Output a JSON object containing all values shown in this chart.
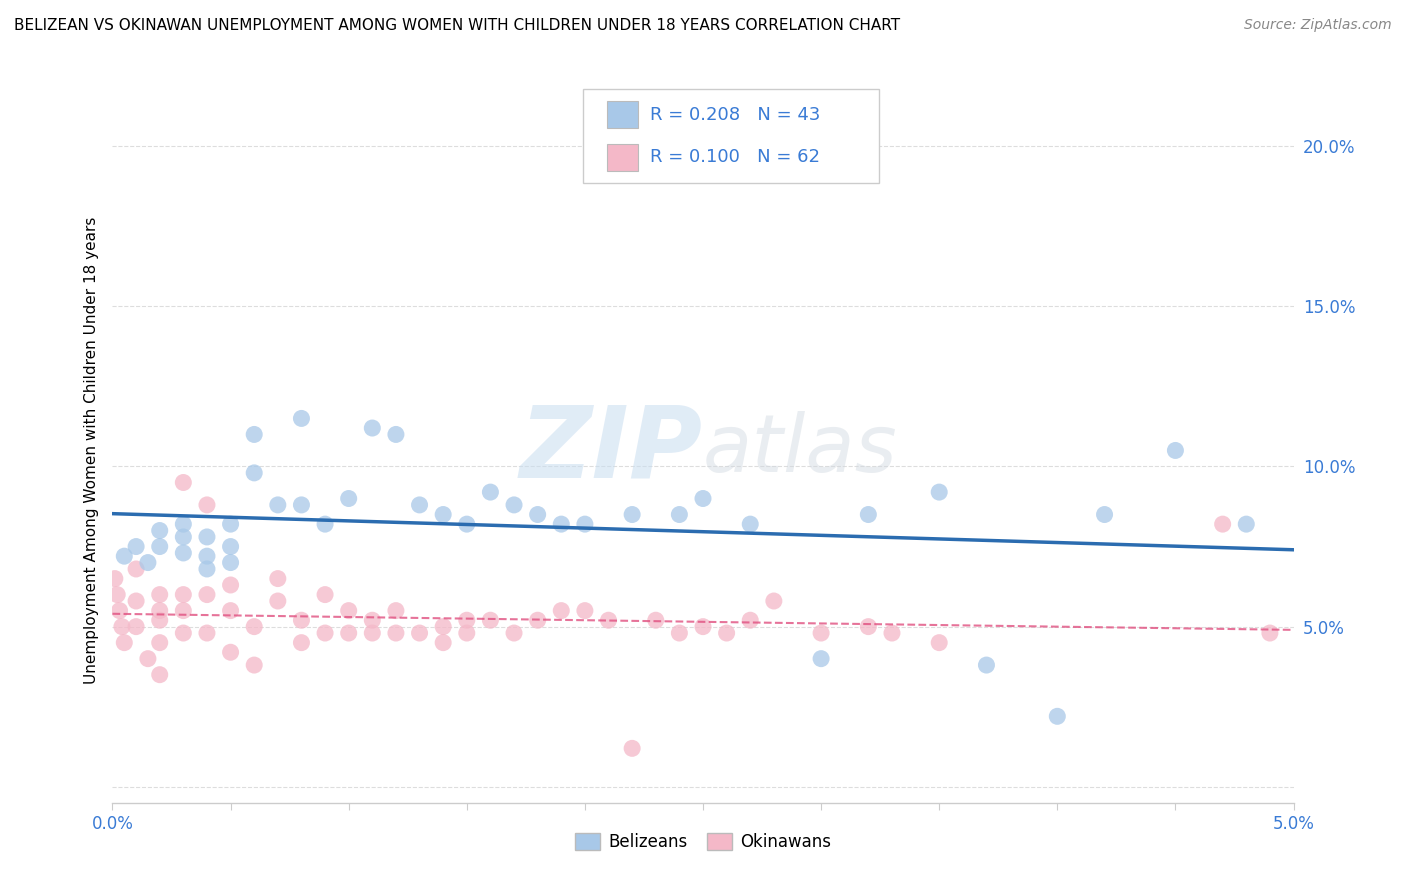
{
  "title": "BELIZEAN VS OKINAWAN UNEMPLOYMENT AMONG WOMEN WITH CHILDREN UNDER 18 YEARS CORRELATION CHART",
  "source": "Source: ZipAtlas.com",
  "ylabel": "Unemployment Among Women with Children Under 18 years",
  "xlim": [
    0.0,
    0.05
  ],
  "ylim": [
    -0.005,
    0.215
  ],
  "xticks": [
    0.0,
    0.005,
    0.01,
    0.015,
    0.02,
    0.025,
    0.03,
    0.035,
    0.04,
    0.045,
    0.05
  ],
  "yticks": [
    0.0,
    0.05,
    0.1,
    0.15,
    0.2
  ],
  "belizean_color": "#a8c8e8",
  "okinawan_color": "#f4b8c8",
  "belizean_line_color": "#2b6cb0",
  "okinawan_line_color": "#e05080",
  "R_belizean": 0.208,
  "N_belizean": 43,
  "R_okinawan": 0.1,
  "N_okinawan": 62,
  "watermark_zip": "ZIP",
  "watermark_atlas": "atlas",
  "belizean_x": [
    0.0005,
    0.001,
    0.0015,
    0.002,
    0.002,
    0.003,
    0.003,
    0.003,
    0.004,
    0.004,
    0.004,
    0.005,
    0.005,
    0.005,
    0.006,
    0.006,
    0.007,
    0.008,
    0.008,
    0.009,
    0.01,
    0.011,
    0.012,
    0.013,
    0.014,
    0.015,
    0.016,
    0.017,
    0.018,
    0.019,
    0.02,
    0.022,
    0.024,
    0.025,
    0.027,
    0.03,
    0.032,
    0.035,
    0.037,
    0.04,
    0.042,
    0.045,
    0.048
  ],
  "belizean_y": [
    0.072,
    0.075,
    0.07,
    0.08,
    0.075,
    0.073,
    0.078,
    0.082,
    0.072,
    0.078,
    0.068,
    0.075,
    0.082,
    0.07,
    0.11,
    0.098,
    0.088,
    0.088,
    0.115,
    0.082,
    0.09,
    0.112,
    0.11,
    0.088,
    0.085,
    0.082,
    0.092,
    0.088,
    0.085,
    0.082,
    0.082,
    0.085,
    0.085,
    0.09,
    0.082,
    0.04,
    0.085,
    0.092,
    0.038,
    0.022,
    0.085,
    0.105,
    0.082
  ],
  "okinawan_x": [
    0.0001,
    0.0002,
    0.0003,
    0.0004,
    0.0005,
    0.001,
    0.001,
    0.001,
    0.0015,
    0.002,
    0.002,
    0.002,
    0.002,
    0.002,
    0.003,
    0.003,
    0.003,
    0.003,
    0.004,
    0.004,
    0.004,
    0.005,
    0.005,
    0.005,
    0.006,
    0.006,
    0.007,
    0.007,
    0.008,
    0.008,
    0.009,
    0.009,
    0.01,
    0.01,
    0.011,
    0.011,
    0.012,
    0.012,
    0.013,
    0.014,
    0.014,
    0.015,
    0.015,
    0.016,
    0.017,
    0.018,
    0.019,
    0.02,
    0.021,
    0.022,
    0.023,
    0.024,
    0.025,
    0.026,
    0.027,
    0.028,
    0.03,
    0.032,
    0.033,
    0.035,
    0.047,
    0.049
  ],
  "okinawan_y": [
    0.065,
    0.06,
    0.055,
    0.05,
    0.045,
    0.068,
    0.058,
    0.05,
    0.04,
    0.06,
    0.055,
    0.052,
    0.045,
    0.035,
    0.095,
    0.06,
    0.055,
    0.048,
    0.088,
    0.06,
    0.048,
    0.063,
    0.055,
    0.042,
    0.038,
    0.05,
    0.058,
    0.065,
    0.052,
    0.045,
    0.06,
    0.048,
    0.055,
    0.048,
    0.052,
    0.048,
    0.048,
    0.055,
    0.048,
    0.05,
    0.045,
    0.052,
    0.048,
    0.052,
    0.048,
    0.052,
    0.055,
    0.055,
    0.052,
    0.012,
    0.052,
    0.048,
    0.05,
    0.048,
    0.052,
    0.058,
    0.048,
    0.05,
    0.048,
    0.045,
    0.082,
    0.048
  ],
  "grid_color": "#dddddd",
  "tick_label_color": "#3a7bd5",
  "title_fontsize": 11,
  "source_fontsize": 10,
  "axis_label_fontsize": 11,
  "tick_fontsize": 12,
  "legend_fontsize": 13
}
